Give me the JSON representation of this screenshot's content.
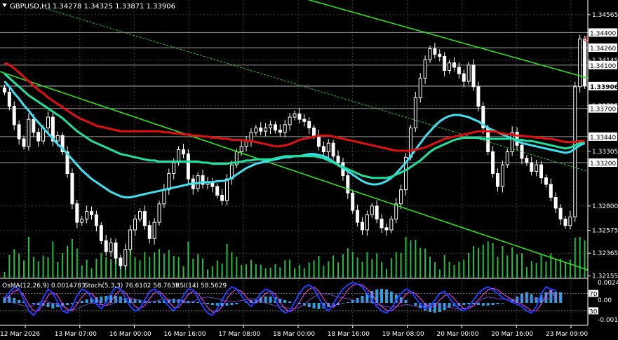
{
  "header": {
    "symbol": "GBPUSD,H1",
    "ohlc": "1.34278 1.34325 1.33871 1.33906"
  },
  "indicator_header": {
    "osma": "OsMA(12,26,9) 0.0014783",
    "stoch": "Stoch(5,3,3) 76.6102 58.7635",
    "rsi": "RSI(14) 58.5629"
  },
  "colors": {
    "background": "#000000",
    "grid": "#3c3c3c",
    "candle": "#ffffff",
    "ema200": "#e01010",
    "ema144": "#20e0a0",
    "ema50": "#40e0f0",
    "channel": "#30e020",
    "trend": "#30c030",
    "osma": "#30a0e0",
    "stoch_main": "#2040ff",
    "stoch_signal": "#ff40ff",
    "rsi": "#8040c0",
    "volume": "#20c040",
    "label_bg": "#ffffff",
    "label_text": "#000000"
  },
  "chart_data": {
    "type": "candlestick",
    "symbol": "GBPUSD",
    "timeframe": "H1",
    "x_labels": [
      "12 Mar 2026",
      "13 Mar 07:00",
      "16 Mar 00:00",
      "16 Mar 16:00",
      "17 Mar 08:00",
      "18 Mar 00:00",
      "18 Mar 16:00",
      "19 Mar 08:00",
      "20 Mar 00:00",
      "20 Mar 16:00",
      "23 Mar 09:00"
    ],
    "y_ticks": [
      "1.34565",
      "1.34145",
      "1.33725",
      "1.33305",
      "1.32800",
      "1.32575",
      "1.32365",
      "1.32155"
    ],
    "price_labels": [
      "1.34400",
      "1.34260",
      "1.34100",
      "1.33906",
      "1.33700",
      "1.33440",
      "1.33200"
    ],
    "last_price": 1.33906,
    "ylim": [
      1.3214,
      1.347
    ],
    "close_series": [
      1.3385,
      1.3372,
      1.3355,
      1.3342,
      1.3335,
      1.336,
      1.3348,
      1.334,
      1.3352,
      1.3362,
      1.334,
      1.3345,
      1.333,
      1.331,
      1.3282,
      1.3265,
      1.3268,
      1.3275,
      1.3272,
      1.3262,
      1.3248,
      1.3238,
      1.3246,
      1.3232,
      1.3225,
      1.324,
      1.3258,
      1.3268,
      1.3275,
      1.3262,
      1.325,
      1.3265,
      1.3282,
      1.3295,
      1.331,
      1.332,
      1.3332,
      1.3328,
      1.3305,
      1.3296,
      1.3308,
      1.33,
      1.3302,
      1.3298,
      1.329,
      1.3285,
      1.3305,
      1.3318,
      1.333,
      1.3335,
      1.334,
      1.3348,
      1.3352,
      1.3349,
      1.3352,
      1.3355,
      1.335,
      1.3348,
      1.3355,
      1.3362,
      1.3365,
      1.336,
      1.3358,
      1.3352,
      1.3345,
      1.3335,
      1.333,
      1.3338,
      1.3326,
      1.332,
      1.3308,
      1.3292,
      1.3276,
      1.3265,
      1.3258,
      1.3272,
      1.328,
      1.3268,
      1.326,
      1.3258,
      1.3268,
      1.3282,
      1.3295,
      1.3325,
      1.3352,
      1.338,
      1.3398,
      1.3415,
      1.3425,
      1.342,
      1.3418,
      1.3405,
      1.3412,
      1.3408,
      1.3402,
      1.3395,
      1.341,
      1.339,
      1.3372,
      1.3352,
      1.333,
      1.331,
      1.3298,
      1.3318,
      1.333,
      1.3348,
      1.3336,
      1.3324,
      1.332,
      1.3312,
      1.3318,
      1.3306,
      1.33,
      1.3288,
      1.3278,
      1.3268,
      1.3262,
      1.327,
      1.339,
      1.3434,
      1.3391
    ],
    "ema200": [
      1.3412,
      1.341,
      1.3407,
      1.3403,
      1.3399,
      1.3395,
      1.3391,
      1.3387,
      1.3384,
      1.338,
      1.3377,
      1.3374,
      1.3371,
      1.3368,
      1.3365,
      1.3362,
      1.336,
      1.3358,
      1.3356,
      1.3354,
      1.3353,
      1.3352,
      1.3351,
      1.335,
      1.3349,
      1.3349,
      1.3349,
      1.3349,
      1.3349,
      1.3349,
      1.3349,
      1.3349,
      1.3349,
      1.3348,
      1.3348,
      1.3347,
      1.3347,
      1.3346,
      1.3346,
      1.3345,
      1.3345,
      1.3344,
      1.3344,
      1.3343,
      1.3343,
      1.3342,
      1.3342,
      1.3341,
      1.3341,
      1.3341,
      1.334,
      1.334,
      1.3339,
      1.3338,
      1.3337,
      1.3336,
      1.3335,
      1.3335,
      1.3336,
      1.3337,
      1.3339,
      1.3341,
      1.3342,
      1.3343,
      1.3344,
      1.3345,
      1.3345,
      1.3345,
      1.3344,
      1.3343,
      1.3342,
      1.3341,
      1.334,
      1.3339,
      1.3338,
      1.3337,
      1.3336,
      1.3335,
      1.3334,
      1.3333,
      1.3332,
      1.3331,
      1.3331,
      1.3331,
      1.3331,
      1.3332,
      1.3333,
      1.3334,
      1.3336,
      1.3338,
      1.334,
      1.3342,
      1.3343,
      1.3344,
      1.3345,
      1.3346,
      1.3347,
      1.3348,
      1.3349,
      1.3349,
      1.3349,
      1.3349,
      1.3348,
      1.3347,
      1.3346,
      1.3346,
      1.3345,
      1.3345,
      1.3344,
      1.3344,
      1.3343,
      1.3343,
      1.3342,
      1.3342,
      1.3341,
      1.334,
      1.3339,
      1.3339,
      1.3339,
      1.334,
      1.334
    ],
    "ema144": [
      1.3402,
      1.3398,
      1.3394,
      1.339,
      1.3386,
      1.3382,
      1.3379,
      1.3376,
      1.3373,
      1.337,
      1.3367,
      1.3364,
      1.3361,
      1.3357,
      1.3353,
      1.3349,
      1.3346,
      1.3343,
      1.334,
      1.3338,
      1.3336,
      1.3334,
      1.3332,
      1.333,
      1.3328,
      1.3327,
      1.3326,
      1.3325,
      1.3324,
      1.3323,
      1.3322,
      1.3322,
      1.3321,
      1.3321,
      1.3321,
      1.3321,
      1.3321,
      1.3321,
      1.3321,
      1.3321,
      1.3321,
      1.332,
      1.332,
      1.3319,
      1.3319,
      1.3319,
      1.3319,
      1.332,
      1.332,
      1.3321,
      1.3322,
      1.3322,
      1.3323,
      1.3323,
      1.3323,
      1.3323,
      1.3324,
      1.3325,
      1.3326,
      1.3326,
      1.3326,
      1.3326,
      1.3326,
      1.3326,
      1.3326,
      1.3325,
      1.3324,
      1.3322,
      1.332,
      1.3318,
      1.3316,
      1.3314,
      1.3312,
      1.331,
      1.3308,
      1.3307,
      1.3306,
      1.3306,
      1.3306,
      1.3306,
      1.3307,
      1.3309,
      1.3311,
      1.3313,
      1.3316,
      1.3319,
      1.3322,
      1.3326,
      1.333,
      1.3333,
      1.3335,
      1.3337,
      1.3339,
      1.3341,
      1.3342,
      1.3343,
      1.3343,
      1.3343,
      1.3343,
      1.3342,
      1.3342,
      1.3342,
      1.3342,
      1.3342,
      1.3342,
      1.3342,
      1.3341,
      1.3341,
      1.334,
      1.334,
      1.3339,
      1.3338,
      1.3337,
      1.3336,
      1.3335,
      1.3334,
      1.3333,
      1.3334,
      1.3336,
      1.3338,
      1.3339
    ],
    "ema50": [
      1.3395,
      1.339,
      1.3384,
      1.3379,
      1.3373,
      1.3368,
      1.3362,
      1.3357,
      1.3352,
      1.3347,
      1.3342,
      1.3337,
      1.3333,
      1.3328,
      1.3323,
      1.3318,
      1.3313,
      1.3309,
      1.3305,
      1.3302,
      1.3299,
      1.3296,
      1.3293,
      1.3291,
      1.3289,
      1.3288,
      1.3288,
      1.3289,
      1.329,
      1.3291,
      1.3292,
      1.3293,
      1.3294,
      1.3295,
      1.3296,
      1.3297,
      1.3298,
      1.3299,
      1.33,
      1.3301,
      1.3301,
      1.3302,
      1.3302,
      1.3302,
      1.3303,
      1.3303,
      1.3304,
      1.3306,
      1.3309,
      1.3312,
      1.3315,
      1.3317,
      1.3319,
      1.332,
      1.3321,
      1.3322,
      1.3323,
      1.3324,
      1.3325,
      1.3325,
      1.3326,
      1.3326,
      1.3327,
      1.3328,
      1.3328,
      1.3327,
      1.3326,
      1.3324,
      1.3321,
      1.3318,
      1.3315,
      1.3312,
      1.3309,
      1.3306,
      1.3303,
      1.3301,
      1.33,
      1.33,
      1.3301,
      1.3303,
      1.3306,
      1.331,
      1.3315,
      1.332,
      1.3326,
      1.3332,
      1.3338,
      1.3344,
      1.3349,
      1.3354,
      1.3358,
      1.3361,
      1.3363,
      1.3364,
      1.3364,
      1.3363,
      1.3362,
      1.336,
      1.3358,
      1.3355,
      1.3352,
      1.335,
      1.3348,
      1.3346,
      1.3344,
      1.3342,
      1.334,
      1.3338,
      1.3337,
      1.3336,
      1.3335,
      1.3334,
      1.3333,
      1.3332,
      1.3331,
      1.333,
      1.3329,
      1.333,
      1.3333,
      1.3336,
      1.3338
    ],
    "osma_series": [
      0.0008,
      0.0009,
      0.0007,
      0.0004,
      0.0002,
      0.0,
      -0.0002,
      -0.0003,
      -0.0004,
      -0.0006,
      -0.0008,
      -0.0006,
      -0.0004,
      -0.0003,
      -0.0002,
      0.0001,
      0.0003,
      0.0005,
      0.0007,
      0.0008,
      0.0009,
      0.001,
      0.0011,
      0.001,
      0.0009,
      0.0007,
      0.0006,
      0.0005,
      0.0004,
      0.0003,
      0.0002,
      0.0002,
      0.0003,
      0.0004,
      0.0005,
      0.0006,
      0.0005,
      0.0004,
      0.0003,
      0.0002,
      0.0001,
      -0.0001,
      -0.0002,
      -0.0003,
      -0.0004,
      -0.0005,
      -0.0004,
      -0.0003,
      -0.0002,
      0.0,
      0.0002,
      0.0004,
      0.0006,
      0.0008,
      0.0009,
      0.0009,
      0.0008,
      0.0006,
      0.0004,
      0.0002,
      0.0,
      -0.0002,
      -0.0004,
      -0.0006,
      -0.0008,
      -0.0009,
      -0.0008,
      -0.0006,
      -0.0005,
      -0.0003,
      -0.0001,
      0.0001,
      0.0004,
      0.0007,
      0.001,
      0.0014,
      0.0017,
      0.0019,
      0.002,
      0.0019,
      0.0016,
      0.0012,
      0.0008,
      0.0004,
      0.0,
      -0.0004,
      -0.0008,
      -0.0011,
      -0.0013,
      -0.0014,
      -0.0013,
      -0.001,
      -0.0007,
      -0.0005,
      -0.0004,
      -0.0003,
      -0.0002,
      -0.0002,
      -0.0003,
      -0.0004,
      -0.0004,
      -0.0003,
      -0.0002,
      -0.0001,
      0.0,
      0.0004,
      0.0009,
      0.0013,
      0.0015,
      0.0012,
      0.0008,
      0.0011,
      0.0015,
      0.0018,
      0.0016,
      0.0015
    ],
    "stoch_main": [
      60,
      72,
      85,
      80,
      55,
      30,
      20,
      35,
      60,
      80,
      70,
      50,
      30,
      25,
      40,
      65,
      80,
      75,
      60,
      45,
      35,
      50,
      70,
      85,
      80,
      60,
      40,
      30,
      35,
      55,
      75,
      80,
      70,
      55,
      40,
      30,
      45,
      65,
      80,
      78,
      60,
      40,
      25,
      20,
      35,
      55,
      75,
      85,
      80,
      65,
      50,
      40,
      55,
      70,
      80,
      75,
      55,
      35,
      25,
      30,
      50,
      70,
      85,
      90,
      80,
      60,
      40,
      30,
      45,
      65,
      80,
      90,
      95,
      92,
      85,
      70,
      55,
      40,
      30,
      25,
      35,
      55,
      70,
      80,
      75,
      60,
      45,
      35,
      40,
      55,
      70,
      75,
      60,
      45,
      35,
      30,
      40,
      55,
      70,
      80,
      85,
      78,
      70,
      60,
      55,
      50,
      45,
      40,
      30,
      25,
      40,
      70,
      85,
      80,
      77
    ],
    "stoch_signal": [
      55,
      65,
      75,
      78,
      65,
      45,
      30,
      30,
      45,
      65,
      72,
      65,
      45,
      32,
      32,
      45,
      62,
      72,
      70,
      58,
      45,
      42,
      52,
      68,
      78,
      72,
      55,
      40,
      35,
      42,
      58,
      72,
      75,
      65,
      50,
      38,
      38,
      52,
      68,
      75,
      70,
      55,
      38,
      27,
      28,
      40,
      58,
      72,
      80,
      75,
      62,
      50,
      48,
      58,
      70,
      76,
      68,
      50,
      35,
      28,
      35,
      50,
      68,
      80,
      85,
      75,
      58,
      42,
      38,
      48,
      62,
      78,
      88,
      92,
      90,
      80,
      68,
      52,
      40,
      32,
      30,
      38,
      52,
      68,
      75,
      70,
      58,
      45,
      38,
      42,
      55,
      65,
      68,
      58,
      45,
      35,
      35,
      42,
      55,
      68,
      78,
      82,
      78,
      70,
      62,
      56,
      50,
      45,
      38,
      30,
      30,
      45,
      65,
      77,
      59
    ],
    "rsi_series": [
      55,
      52,
      48,
      45,
      42,
      40,
      43,
      48,
      52,
      50,
      47,
      45,
      40,
      35,
      32,
      35,
      40,
      45,
      48,
      46,
      44,
      42,
      45,
      50,
      55,
      58,
      60,
      57,
      55,
      52,
      50,
      52,
      55,
      58,
      56,
      54,
      52,
      50,
      48,
      52,
      56,
      60,
      62,
      60,
      58,
      55,
      52,
      50,
      52,
      54,
      56,
      58,
      55,
      52,
      48,
      45,
      42,
      40,
      38,
      36,
      35,
      38,
      45,
      55,
      62,
      68,
      70,
      68,
      65,
      62,
      60,
      58,
      55,
      52,
      50,
      52,
      48,
      45,
      42,
      40,
      38,
      40,
      42,
      45,
      43,
      40,
      38,
      42,
      45,
      44,
      42,
      40,
      38,
      36,
      34,
      35,
      38,
      42,
      50,
      58,
      62,
      60,
      58,
      57,
      56,
      57,
      58,
      58,
      57,
      58,
      57,
      58,
      59,
      58,
      58
    ]
  }
}
